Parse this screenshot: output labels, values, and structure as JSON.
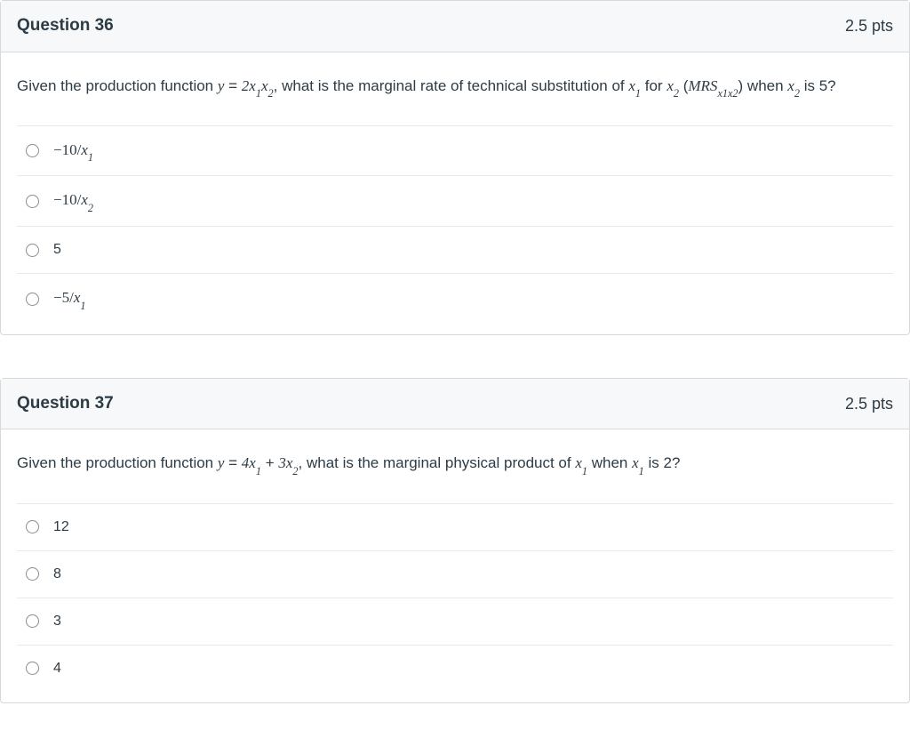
{
  "questions": [
    {
      "title": "Question 36",
      "points": "2.5 pts",
      "prompt_parts": {
        "p1": "Given the production function ",
        "eq1_lhs": "y",
        "eq1_eq": " = ",
        "eq1_rhs_coef": "2",
        "eq1_rhs_x1": "x",
        "eq1_rhs_x1sub": "1",
        "eq1_rhs_x2": "x",
        "eq1_rhs_x2sub": "2",
        "p2": ", what is the marginal rate of technical substitution of ",
        "x1": "x",
        "x1sub": "1",
        "p3": " for ",
        "x2": "x",
        "x2sub": "2",
        "p4": " (",
        "mrs": "MRS",
        "mrs_sub": "x1x2",
        "p5": ") when  ",
        "x2b": "x",
        "x2bsub": "2",
        "p6": " is 5?"
      },
      "options": [
        {
          "pre": "−10/",
          "var": "x",
          "sub": "1",
          "math": true
        },
        {
          "pre": "−10/",
          "var": "x",
          "sub": "2",
          "math": true
        },
        {
          "pre": "5",
          "var": "",
          "sub": "",
          "math": false
        },
        {
          "pre": "−5/",
          "var": "x",
          "sub": "1",
          "math": true
        }
      ]
    },
    {
      "title": "Question 37",
      "points": "2.5 pts",
      "prompt_parts": {
        "p1": "Given the production function ",
        "eq1_lhs": "y",
        "eq1_eq": " = ",
        "t1_coef": "4",
        "t1_x": "x",
        "t1_sub": "1",
        "plus": " + ",
        "t2_coef": "3",
        "t2_x": "x",
        "t2_sub": "2",
        "p2": ", what is the marginal physical product of ",
        "x1": "x",
        "x1sub": "1",
        "p3": " when  ",
        "x1b": "x",
        "x1bsub": "1",
        "p4": " is 2?"
      },
      "options": [
        {
          "pre": "12",
          "var": "",
          "sub": "",
          "math": false
        },
        {
          "pre": "8",
          "var": "",
          "sub": "",
          "math": false
        },
        {
          "pre": "3",
          "var": "",
          "sub": "",
          "math": false
        },
        {
          "pre": "4",
          "var": "",
          "sub": "",
          "math": false
        }
      ]
    }
  ]
}
